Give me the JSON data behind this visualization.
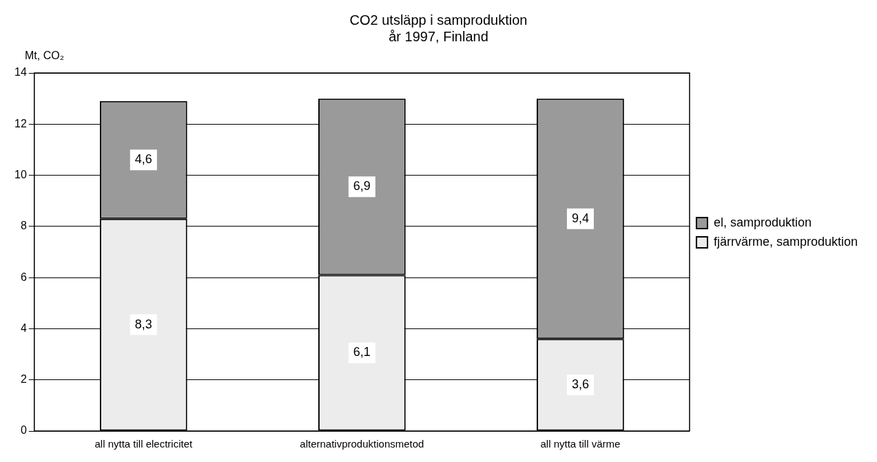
{
  "chart_data": {
    "type": "bar",
    "title": "CO2 utsläpp i samproduktion",
    "subtitle": "år 1997, Finland",
    "ylabel": "Mt, CO₂",
    "categories": [
      "all nytta till electricitet",
      "alternativproduktionsmetod",
      "all nytta till värme"
    ],
    "series": [
      {
        "name": "fjärrvärme, samproduktion",
        "color": "#ececec",
        "values": [
          8.3,
          6.1,
          3.6
        ],
        "value_labels": [
          "8,3",
          "6,1",
          "3,6"
        ]
      },
      {
        "name": "el, samproduktion",
        "color": "#9a9a9a",
        "values": [
          4.6,
          6.9,
          9.4
        ],
        "value_labels": [
          "4,6",
          "6,9",
          "9,4"
        ]
      }
    ],
    "stacked": true,
    "ylim": [
      0,
      14
    ],
    "yticks": [
      0,
      2,
      4,
      6,
      8,
      10,
      12,
      14
    ],
    "grid": "y",
    "legend": "right"
  }
}
